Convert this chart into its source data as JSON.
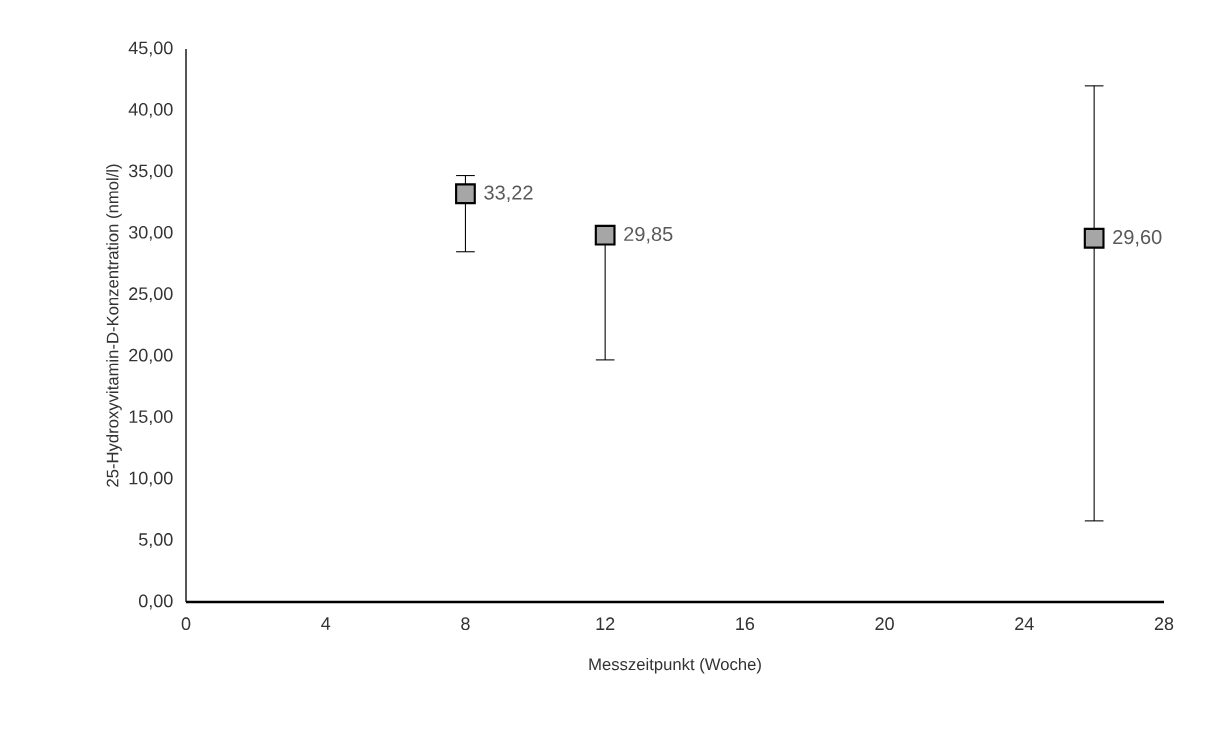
{
  "chart_data": {
    "type": "scatter",
    "xlabel": "Messzeitpunkt  (Woche)",
    "ylabel": "25-Hydroxyvitamin-D-Konzentration  (nmol/l)",
    "x": [
      8,
      12,
      26
    ],
    "values": [
      33.22,
      29.85,
      29.6
    ],
    "value_labels": [
      "33,22",
      "29,85",
      "29,60"
    ],
    "errors": [
      [
        28.5,
        34.7
      ],
      [
        19.7,
        30.0
      ],
      [
        6.6,
        42.0
      ]
    ],
    "color": "#a6a6a6",
    "marker": "square",
    "grid": false,
    "xlim": [
      0,
      28
    ],
    "xticks": [
      0,
      4,
      8,
      12,
      16,
      20,
      24,
      28
    ],
    "ylim": [
      0,
      45
    ],
    "yticks": [
      {
        "value": 0,
        "label": "0,00"
      },
      {
        "value": 5,
        "label": "5,00"
      },
      {
        "value": 10,
        "label": "10,00"
      },
      {
        "value": 15,
        "label": "15,00"
      },
      {
        "value": 20,
        "label": "20,00"
      },
      {
        "value": 25,
        "label": "25,00"
      },
      {
        "value": 30,
        "label": "30,00"
      },
      {
        "value": 35,
        "label": "35,00"
      },
      {
        "value": 40,
        "label": "40,00"
      },
      {
        "value": 45,
        "label": "45,00"
      }
    ]
  }
}
